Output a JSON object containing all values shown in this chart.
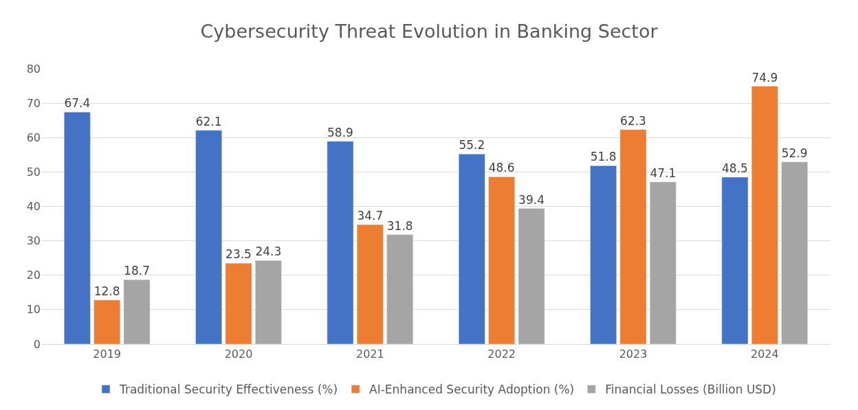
{
  "chart_data": {
    "type": "bar",
    "title": "Cybersecurity Threat Evolution in Banking Sector",
    "categories": [
      "2019",
      "2020",
      "2021",
      "2022",
      "2023",
      "2024"
    ],
    "series": [
      {
        "name": "Traditional Security Effectiveness (%)",
        "color": "#4472c4",
        "values": [
          67.4,
          62.1,
          58.9,
          55.2,
          51.8,
          48.5
        ]
      },
      {
        "name": "AI-Enhanced Security Adoption (%)",
        "color": "#ed7d31",
        "values": [
          12.8,
          23.5,
          34.7,
          48.6,
          62.3,
          74.9
        ]
      },
      {
        "name": "Financial Losses (Billion USD)",
        "color": "#a5a5a5",
        "values": [
          18.7,
          24.3,
          31.8,
          39.4,
          47.1,
          52.9
        ]
      }
    ],
    "ylim": [
      0,
      80
    ],
    "yticks": [
      0,
      10,
      20,
      30,
      40,
      50,
      60,
      70,
      80
    ],
    "grid": "y",
    "legend": "bottom",
    "data_labels": true
  }
}
